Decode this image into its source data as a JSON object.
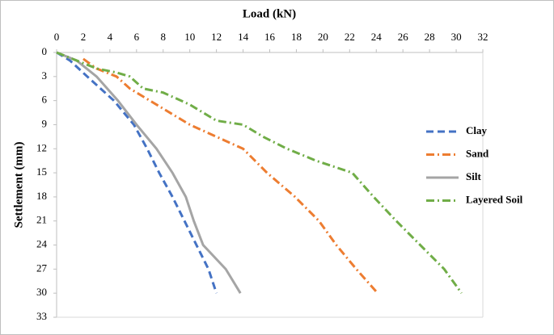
{
  "chart_data": {
    "type": "line",
    "x_label": "Load (kN)",
    "y_label": "Settlement (mm)",
    "xlim": [
      0,
      32
    ],
    "xticks": [
      0,
      2,
      4,
      6,
      8,
      10,
      12,
      14,
      16,
      18,
      20,
      22,
      24,
      26,
      28,
      30,
      32
    ],
    "ylim": [
      0,
      33
    ],
    "yticks": [
      0,
      3,
      6,
      9,
      12,
      15,
      18,
      21,
      24,
      27,
      30,
      33
    ],
    "y_inverted": true,
    "x_axis_position": "top",
    "grid": false,
    "legend": "right",
    "series": [
      {
        "name": "Clay",
        "color": "#4472c4",
        "style": "dashed",
        "x": [
          0,
          1,
          2.3,
          4.3,
          5.8,
          6.8,
          7.7,
          8.7,
          9.6,
          10.5,
          11.4,
          12
        ],
        "values": [
          0,
          1,
          3,
          6,
          9,
          12,
          15,
          18,
          21,
          24,
          27,
          30
        ]
      },
      {
        "name": "Sand",
        "color": "#ed7d31",
        "style": "dashdot",
        "x": [
          2,
          3,
          4.5,
          5.5,
          7,
          8.5,
          10,
          12,
          14,
          15.8,
          17.9,
          19.7,
          21,
          22.5,
          24.1
        ],
        "values": [
          0.8,
          2,
          3,
          4.5,
          6,
          7.5,
          9,
          10.5,
          12,
          15,
          18,
          21,
          24,
          27,
          30
        ]
      },
      {
        "name": "Silt",
        "color": "#a5a5a5",
        "style": "solid",
        "x": [
          0,
          1.5,
          3,
          4.6,
          6,
          7.5,
          8.7,
          9.7,
          10.3,
          11,
          12.7,
          13.8
        ],
        "values": [
          0,
          1,
          3,
          6,
          9,
          12,
          15,
          18,
          21,
          24,
          27,
          30
        ]
      },
      {
        "name": "Layered Soil",
        "color": "#70ad47",
        "style": "dashdot",
        "x": [
          0,
          1.5,
          3,
          4.5,
          5.5,
          6.5,
          8,
          10,
          12,
          14,
          15.5,
          17.3,
          19.5,
          22.2,
          23.8,
          25.5,
          27.3,
          29.1,
          30.4
        ],
        "values": [
          0,
          1,
          2,
          2.5,
          3,
          4.5,
          5,
          6.5,
          8.5,
          9,
          10.5,
          12,
          13.5,
          15,
          18,
          21,
          24,
          27,
          30
        ]
      }
    ]
  }
}
